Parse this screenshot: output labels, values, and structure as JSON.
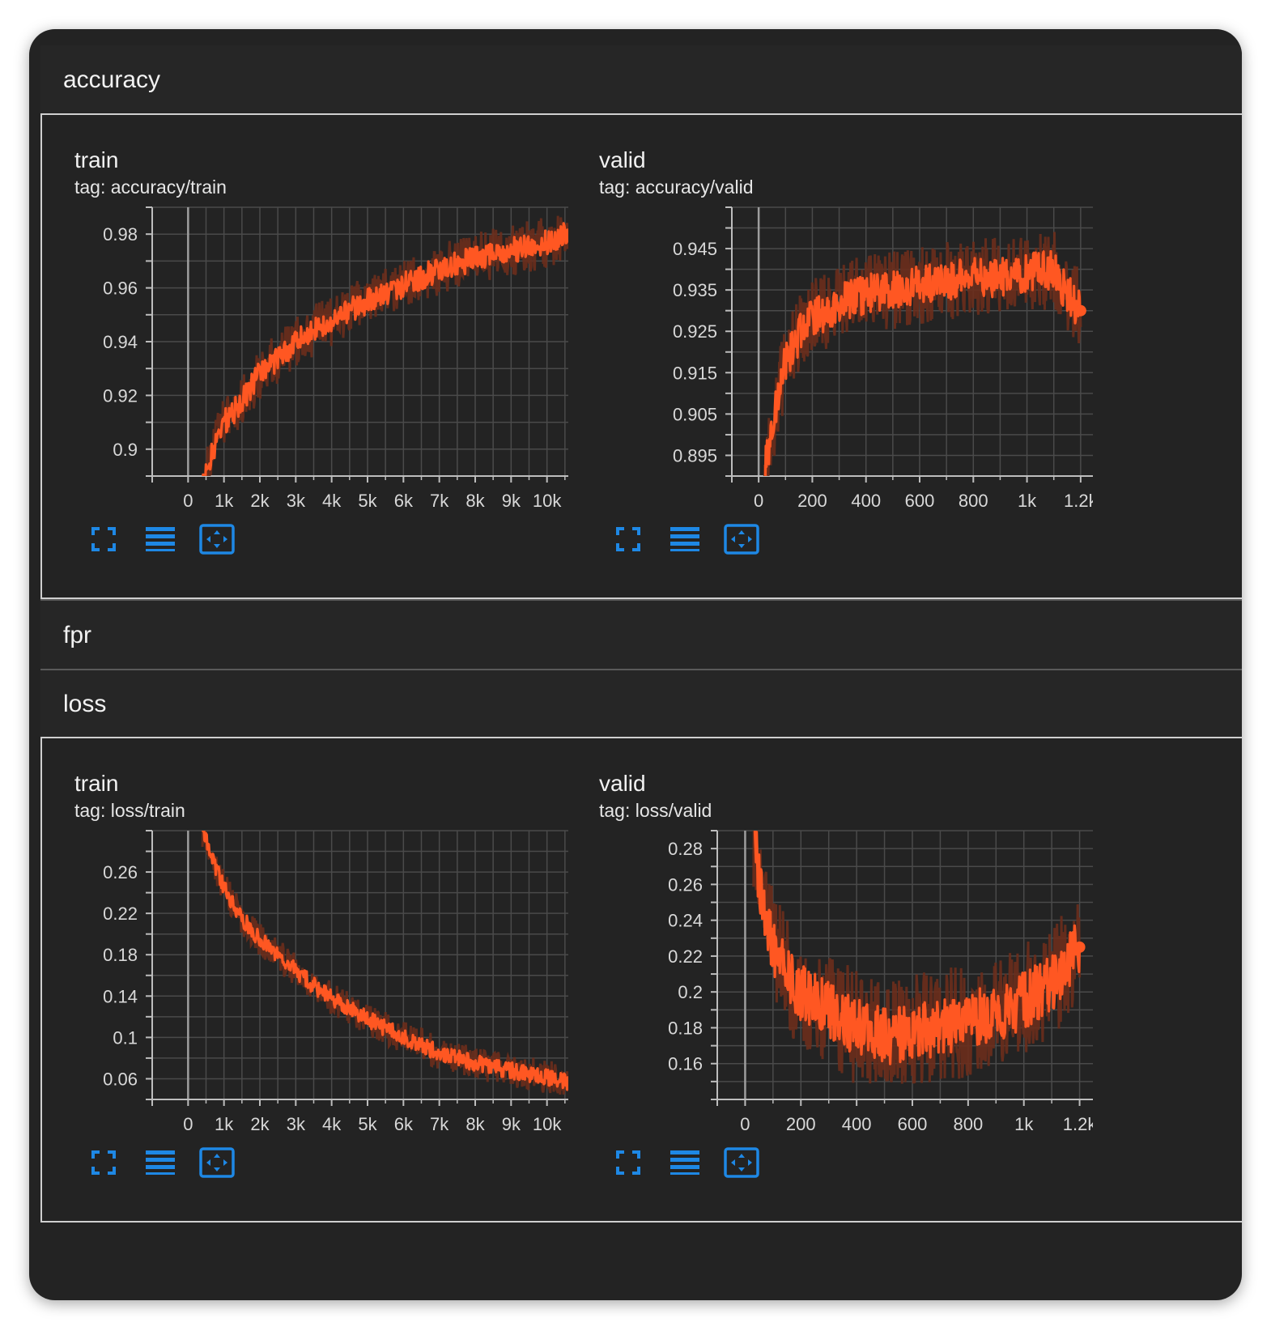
{
  "sections": [
    {
      "name": "accuracy",
      "expanded": true
    },
    {
      "name": "fpr",
      "expanded": false
    },
    {
      "name": "loss",
      "expanded": true
    }
  ],
  "cards": {
    "acc_train": {
      "title": "train",
      "tag": "tag: accuracy/train"
    },
    "acc_valid": {
      "title": "valid",
      "tag": "tag: accuracy/valid"
    },
    "loss_train": {
      "title": "train",
      "tag": "tag: loss/train"
    },
    "loss_valid": {
      "title": "valid",
      "tag": "tag: loss/valid"
    }
  },
  "colors": {
    "line": "#ff5722",
    "line_raw": "#6b2d1c",
    "grid": "#4a4a4a",
    "axis": "#bdbdbd",
    "icon": "#1e88e5"
  },
  "toolbar_icons": [
    "fullscreen-icon",
    "data-table-icon",
    "fit-domain-icon"
  ],
  "chart_data": [
    {
      "id": "acc_train",
      "type": "line",
      "title": "train",
      "xlim": [
        -1000,
        11000
      ],
      "ylim": [
        0.89,
        0.99
      ],
      "xticks": [
        0,
        1000,
        2000,
        3000,
        4000,
        5000,
        6000,
        7000,
        8000,
        9000,
        10000
      ],
      "xtick_labels": [
        "0",
        "1k",
        "2k",
        "3k",
        "4k",
        "5k",
        "6k",
        "7k",
        "8k",
        "9k",
        "10k"
      ],
      "yticks": [
        0.9,
        0.92,
        0.94,
        0.96,
        0.98
      ],
      "ytick_labels": [
        "0.9",
        "0.92",
        "0.94",
        "0.96",
        "0.98"
      ],
      "yminor": 0.01,
      "series": [
        {
          "x": [
            400,
            700,
            1000,
            1500,
            2000,
            2500,
            3000,
            3500,
            4000,
            5000,
            6000,
            7000,
            8000,
            9000,
            10000,
            10600
          ],
          "y": [
            0.885,
            0.9,
            0.91,
            0.918,
            0.928,
            0.934,
            0.94,
            0.944,
            0.948,
            0.955,
            0.961,
            0.967,
            0.971,
            0.974,
            0.977,
            0.98
          ]
        }
      ],
      "noise": 0.006
    },
    {
      "id": "acc_valid",
      "type": "line",
      "title": "valid",
      "xlim": [
        -100,
        1300
      ],
      "ylim": [
        0.89,
        0.955
      ],
      "xticks": [
        0,
        200,
        400,
        600,
        800,
        1000,
        1200
      ],
      "xtick_labels": [
        "0",
        "200",
        "400",
        "600",
        "800",
        "1k",
        "1.2k"
      ],
      "yticks": [
        0.895,
        0.905,
        0.915,
        0.925,
        0.935,
        0.945
      ],
      "ytick_labels": [
        "0.895",
        "0.905",
        "0.915",
        "0.925",
        "0.935",
        "0.945"
      ],
      "yminor": 0.005,
      "series": [
        {
          "x": [
            20,
            60,
            100,
            150,
            200,
            300,
            400,
            500,
            600,
            700,
            800,
            900,
            1000,
            1100,
            1150,
            1200
          ],
          "y": [
            0.89,
            0.905,
            0.918,
            0.924,
            0.928,
            0.932,
            0.934,
            0.935,
            0.936,
            0.937,
            0.938,
            0.938,
            0.939,
            0.94,
            0.934,
            0.93
          ]
        }
      ],
      "noise": 0.006
    },
    {
      "id": "loss_train",
      "type": "line",
      "title": "train",
      "xlim": [
        -1000,
        11000
      ],
      "ylim": [
        0.04,
        0.3
      ],
      "xticks": [
        0,
        1000,
        2000,
        3000,
        4000,
        5000,
        6000,
        7000,
        8000,
        9000,
        10000
      ],
      "xtick_labels": [
        "0",
        "1k",
        "2k",
        "3k",
        "4k",
        "5k",
        "6k",
        "7k",
        "8k",
        "9k",
        "10k"
      ],
      "yticks": [
        0.06,
        0.1,
        0.14,
        0.18,
        0.22,
        0.26
      ],
      "ytick_labels": [
        "0.06",
        "0.1",
        "0.14",
        "0.18",
        "0.22",
        "0.26"
      ],
      "yminor": 0.02,
      "series": [
        {
          "x": [
            400,
            700,
            1000,
            1500,
            2000,
            2500,
            3000,
            3500,
            4000,
            5000,
            6000,
            7000,
            8000,
            9000,
            10000,
            10600
          ],
          "y": [
            0.3,
            0.27,
            0.245,
            0.215,
            0.195,
            0.18,
            0.165,
            0.15,
            0.138,
            0.118,
            0.1,
            0.085,
            0.075,
            0.068,
            0.062,
            0.057
          ]
        }
      ],
      "noise": 0.01
    },
    {
      "id": "loss_valid",
      "type": "line",
      "title": "valid",
      "xlim": [
        -100,
        1300
      ],
      "ylim": [
        0.14,
        0.29
      ],
      "xticks": [
        0,
        200,
        400,
        600,
        800,
        1000,
        1200
      ],
      "xtick_labels": [
        "0",
        "200",
        "400",
        "600",
        "800",
        "1k",
        "1.2k"
      ],
      "yticks": [
        0.16,
        0.18,
        0.2,
        0.22,
        0.24,
        0.26,
        0.28
      ],
      "ytick_labels": [
        "0.16",
        "0.18",
        "0.2",
        "0.22",
        "0.24",
        "0.26",
        "0.28"
      ],
      "yminor": 0.01,
      "series": [
        {
          "x": [
            30,
            60,
            100,
            150,
            200,
            300,
            400,
            500,
            600,
            700,
            800,
            900,
            1000,
            1100,
            1150,
            1200
          ],
          "y": [
            0.29,
            0.25,
            0.225,
            0.21,
            0.2,
            0.19,
            0.18,
            0.175,
            0.178,
            0.18,
            0.185,
            0.188,
            0.195,
            0.205,
            0.215,
            0.225
          ]
        }
      ],
      "noise": 0.02
    }
  ]
}
